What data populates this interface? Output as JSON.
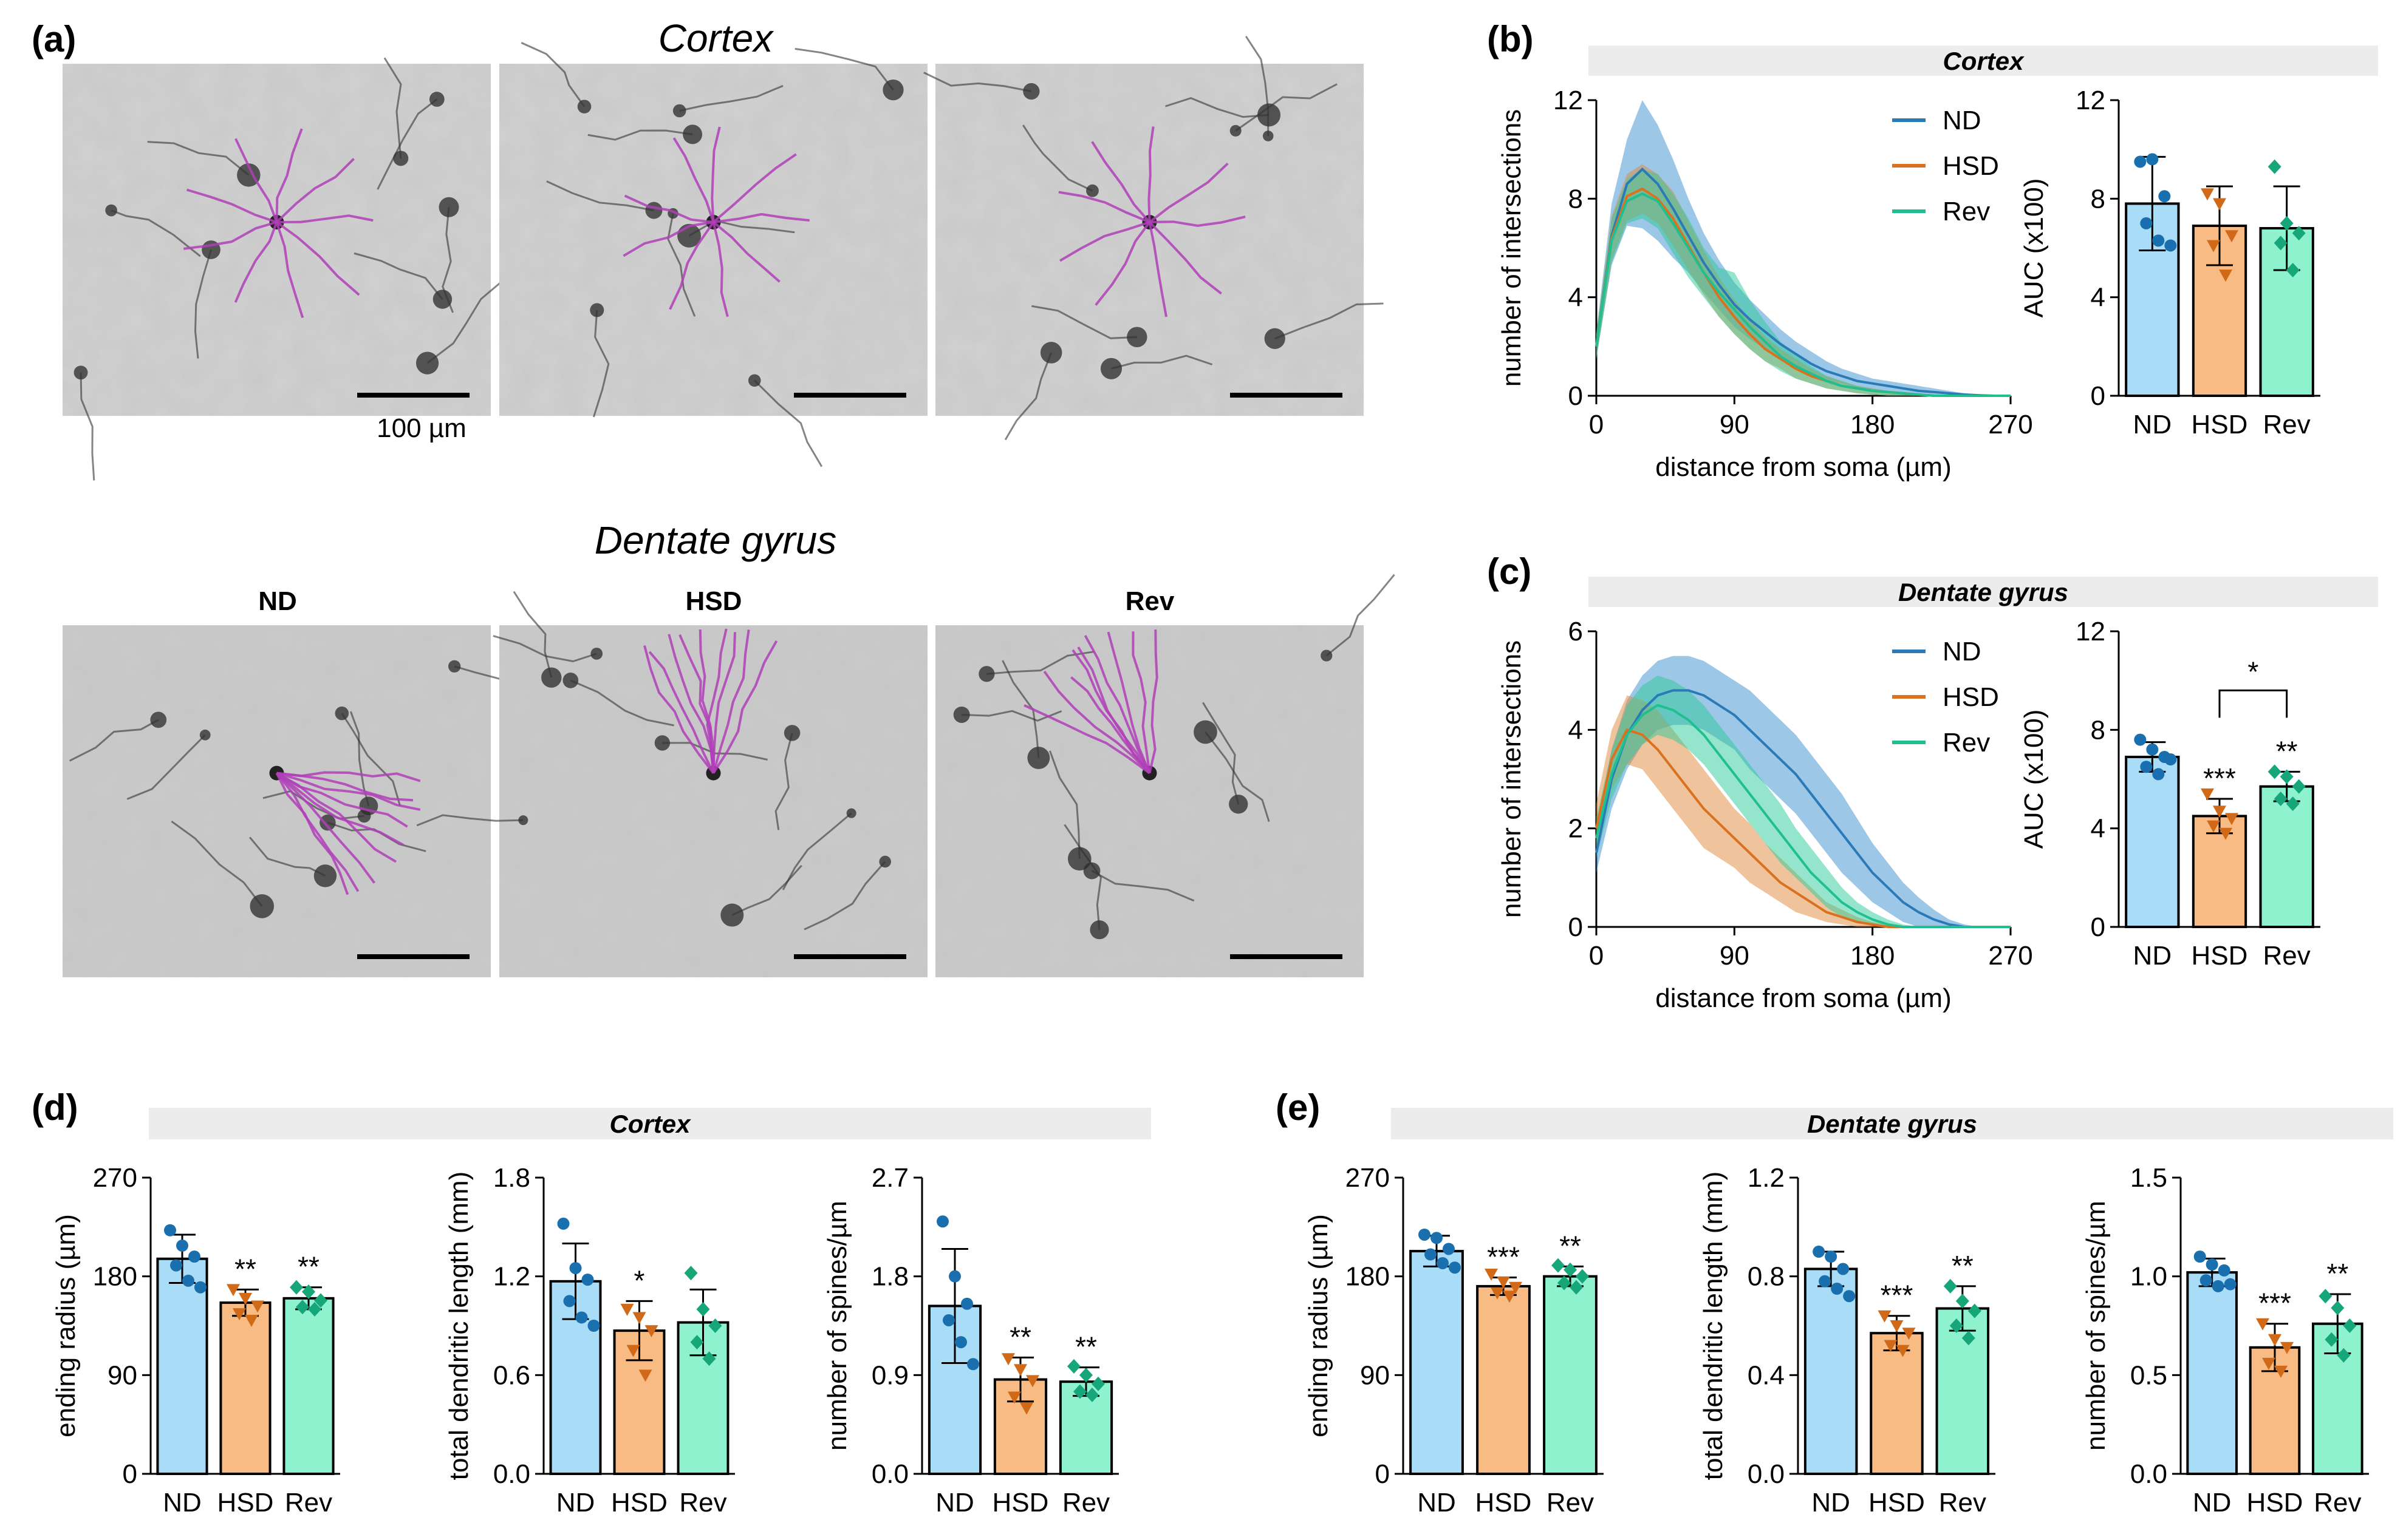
{
  "panels": {
    "a": {
      "letter": "(a)",
      "cortex_title": "Cortex",
      "dentate_title": "Dentate gyrus",
      "columns": [
        "ND",
        "HSD",
        "Rev"
      ],
      "scale_label": "100 µm"
    },
    "b": {
      "letter": "(b)",
      "header": "Cortex"
    },
    "c": {
      "letter": "(c)",
      "header": "Dentate gyrus"
    },
    "d": {
      "letter": "(d)",
      "header": "Cortex"
    },
    "e": {
      "letter": "(e)",
      "header": "Dentate gyrus"
    }
  },
  "groups": [
    "ND",
    "HSD",
    "Rev"
  ],
  "colors": {
    "ND_line": "#2a7ab8",
    "HSD_line": "#d9711f",
    "Rev_line": "#1fbf8f",
    "ND_fill": "#a8dcf7",
    "HSD_fill": "#f9bb84",
    "Rev_fill": "#8ef2cf",
    "ND_dot": "#1a6fae",
    "HSD_dot": "#d06a18",
    "Rev_dot": "#17a67a",
    "tracing": "#b040b8",
    "header_bg": "#ececec"
  },
  "chart_data": [
    {
      "id": "b-sholl",
      "type": "line",
      "title": "Cortex",
      "xlabel": "distance from soma (µm)",
      "ylabel": "number of intersections",
      "xlim": [
        0,
        270
      ],
      "ylim": [
        0,
        12
      ],
      "xticks": [
        0,
        90,
        180,
        270
      ],
      "yticks": [
        0,
        4,
        8,
        12
      ],
      "legend": [
        "ND",
        "HSD",
        "Rev"
      ],
      "x": [
        0,
        10,
        20,
        30,
        40,
        50,
        60,
        70,
        80,
        90,
        100,
        110,
        120,
        130,
        140,
        150,
        160,
        170,
        180,
        190,
        200,
        210,
        220,
        230,
        240,
        250,
        260,
        270
      ],
      "series": [
        {
          "name": "ND",
          "values": [
            2,
            6.5,
            8.6,
            9.2,
            8.6,
            7.6,
            6.5,
            5.4,
            4.5,
            3.7,
            3.1,
            2.6,
            2.1,
            1.7,
            1.3,
            1.0,
            0.8,
            0.6,
            0.5,
            0.4,
            0.3,
            0.2,
            0.15,
            0.1,
            0.05,
            0.02,
            0,
            0
          ],
          "upper": [
            2.6,
            7.8,
            10.4,
            12.0,
            11.0,
            9.6,
            8.0,
            6.6,
            5.5,
            4.6,
            3.9,
            3.3,
            2.7,
            2.2,
            1.8,
            1.4,
            1.1,
            0.9,
            0.7,
            0.6,
            0.5,
            0.4,
            0.3,
            0.2,
            0.1,
            0.05,
            0,
            0
          ],
          "lower": [
            1.5,
            5.3,
            6.9,
            6.8,
            6.3,
            5.6,
            5.0,
            4.2,
            3.5,
            2.8,
            2.3,
            1.9,
            1.5,
            1.2,
            0.9,
            0.6,
            0.5,
            0.3,
            0.25,
            0.2,
            0.1,
            0.05,
            0,
            0,
            0,
            0,
            0,
            0
          ]
        },
        {
          "name": "HSD",
          "values": [
            2,
            6.4,
            8.1,
            8.4,
            8.0,
            7.2,
            6.1,
            5.0,
            4.0,
            3.2,
            2.5,
            1.9,
            1.5,
            1.1,
            0.8,
            0.6,
            0.4,
            0.3,
            0.2,
            0.15,
            0.1,
            0.05,
            0,
            0,
            0,
            0,
            0,
            0
          ],
          "upper": [
            2.5,
            7.3,
            9.0,
            9.4,
            9.0,
            8.3,
            7.1,
            5.9,
            4.8,
            3.9,
            3.1,
            2.4,
            1.9,
            1.5,
            1.1,
            0.8,
            0.6,
            0.4,
            0.3,
            0.2,
            0.15,
            0.1,
            0.05,
            0,
            0,
            0,
            0,
            0
          ],
          "lower": [
            1.5,
            5.5,
            7.1,
            7.4,
            7.0,
            6.1,
            5.1,
            4.1,
            3.2,
            2.5,
            1.9,
            1.4,
            1.1,
            0.7,
            0.5,
            0.3,
            0.2,
            0.1,
            0.05,
            0,
            0,
            0,
            0,
            0,
            0,
            0,
            0,
            0
          ]
        },
        {
          "name": "Rev",
          "values": [
            2,
            6.3,
            7.9,
            8.2,
            7.9,
            7.0,
            6.0,
            5.0,
            4.2,
            3.5,
            2.8,
            2.2,
            1.6,
            1.2,
            0.9,
            0.6,
            0.4,
            0.3,
            0.2,
            0.15,
            0.1,
            0.05,
            0,
            0,
            0,
            0,
            0,
            0
          ],
          "upper": [
            2.5,
            7.2,
            8.8,
            9.2,
            9.0,
            8.2,
            7.2,
            6.0,
            5.2,
            5.0,
            3.9,
            3.0,
            2.2,
            1.7,
            1.2,
            0.8,
            0.6,
            0.4,
            0.3,
            0.2,
            0.15,
            0.1,
            0.05,
            0,
            0,
            0,
            0,
            0
          ],
          "lower": [
            1.5,
            5.4,
            7.0,
            7.2,
            6.8,
            5.8,
            4.8,
            4.0,
            3.2,
            2.5,
            1.9,
            1.4,
            1.0,
            0.7,
            0.5,
            0.3,
            0.2,
            0.1,
            0.05,
            0,
            0,
            0,
            0,
            0,
            0,
            0,
            0,
            0
          ]
        }
      ]
    },
    {
      "id": "b-auc",
      "type": "bar",
      "title": "Cortex",
      "xlabel": "",
      "ylabel": "AUC (x100)",
      "categories": [
        "ND",
        "HSD",
        "Rev"
      ],
      "ylim": [
        0,
        12
      ],
      "yticks": [
        0,
        4,
        8,
        12
      ],
      "values": [
        7.8,
        6.9,
        6.8
      ],
      "errors": [
        1.9,
        1.6,
        1.7
      ],
      "points": [
        [
          9.5,
          9.6,
          8.1,
          7.0,
          6.3,
          6.1
        ],
        [
          8.2,
          7.8,
          6.5,
          6.1,
          4.9
        ],
        [
          9.3,
          7.0,
          6.6,
          6.2,
          5.1
        ]
      ],
      "significance": [
        "",
        "",
        ""
      ]
    },
    {
      "id": "c-sholl",
      "type": "line",
      "title": "Dentate gyrus",
      "xlabel": "distance from soma (µm)",
      "ylabel": "number of intersections",
      "xlim": [
        0,
        270
      ],
      "ylim": [
        0,
        6
      ],
      "xticks": [
        0,
        90,
        180,
        270
      ],
      "yticks": [
        0,
        2,
        4,
        6
      ],
      "legend": [
        "ND",
        "HSD",
        "Rev"
      ],
      "x": [
        0,
        10,
        20,
        30,
        40,
        50,
        60,
        70,
        80,
        90,
        100,
        110,
        120,
        130,
        140,
        150,
        160,
        170,
        180,
        190,
        200,
        210,
        220,
        230,
        240,
        250,
        260,
        270
      ],
      "series": [
        {
          "name": "ND",
          "values": [
            1.5,
            3.0,
            3.9,
            4.4,
            4.7,
            4.8,
            4.8,
            4.7,
            4.5,
            4.3,
            4.0,
            3.7,
            3.4,
            3.1,
            2.7,
            2.3,
            1.9,
            1.5,
            1.1,
            0.8,
            0.5,
            0.3,
            0.15,
            0.05,
            0,
            0,
            0,
            0
          ],
          "upper": [
            1.9,
            3.6,
            4.6,
            5.1,
            5.4,
            5.5,
            5.5,
            5.4,
            5.2,
            5.0,
            4.8,
            4.5,
            4.2,
            3.9,
            3.5,
            3.1,
            2.7,
            2.2,
            1.7,
            1.3,
            0.9,
            0.6,
            0.35,
            0.15,
            0.05,
            0,
            0,
            0
          ],
          "lower": [
            1.1,
            2.4,
            3.2,
            3.7,
            4.0,
            4.1,
            4.1,
            4.0,
            3.8,
            3.6,
            3.2,
            2.9,
            2.6,
            2.3,
            1.9,
            1.5,
            1.1,
            0.8,
            0.5,
            0.3,
            0.1,
            0,
            0,
            0,
            0,
            0,
            0,
            0
          ]
        },
        {
          "name": "HSD",
          "values": [
            2.0,
            3.4,
            4.0,
            3.9,
            3.6,
            3.2,
            2.8,
            2.4,
            2.1,
            1.8,
            1.5,
            1.2,
            0.9,
            0.7,
            0.5,
            0.3,
            0.2,
            0.1,
            0.05,
            0,
            0,
            0,
            0,
            0,
            0,
            0,
            0,
            0
          ],
          "upper": [
            2.5,
            4.0,
            4.7,
            4.6,
            4.4,
            4.0,
            3.6,
            3.2,
            2.8,
            2.4,
            2.1,
            1.7,
            1.4,
            1.1,
            0.8,
            0.5,
            0.35,
            0.2,
            0.1,
            0.05,
            0,
            0,
            0,
            0,
            0,
            0,
            0,
            0
          ],
          "lower": [
            1.5,
            2.8,
            3.3,
            3.2,
            2.8,
            2.4,
            2.0,
            1.6,
            1.4,
            1.2,
            0.9,
            0.7,
            0.5,
            0.3,
            0.2,
            0.1,
            0.05,
            0,
            0,
            0,
            0,
            0,
            0,
            0,
            0,
            0,
            0,
            0
          ]
        },
        {
          "name": "Rev",
          "values": [
            1.8,
            3.1,
            3.9,
            4.3,
            4.5,
            4.4,
            4.2,
            3.9,
            3.5,
            3.1,
            2.7,
            2.3,
            1.9,
            1.5,
            1.1,
            0.8,
            0.5,
            0.3,
            0.15,
            0.05,
            0,
            0,
            0,
            0,
            0,
            0,
            0,
            0
          ],
          "upper": [
            2.2,
            3.6,
            4.5,
            4.9,
            5.1,
            5.0,
            4.8,
            4.5,
            4.1,
            3.7,
            3.3,
            2.9,
            2.5,
            2.0,
            1.6,
            1.2,
            0.8,
            0.5,
            0.3,
            0.15,
            0.05,
            0,
            0,
            0,
            0,
            0,
            0,
            0
          ],
          "lower": [
            1.4,
            2.6,
            3.3,
            3.7,
            3.9,
            3.8,
            3.6,
            3.3,
            2.9,
            2.5,
            2.1,
            1.7,
            1.3,
            1.0,
            0.7,
            0.4,
            0.2,
            0.1,
            0.05,
            0,
            0,
            0,
            0,
            0,
            0,
            0,
            0,
            0
          ]
        }
      ]
    },
    {
      "id": "c-auc",
      "type": "bar",
      "title": "Dentate gyrus",
      "xlabel": "",
      "ylabel": "AUC (x100)",
      "categories": [
        "ND",
        "HSD",
        "Rev"
      ],
      "ylim": [
        0,
        12
      ],
      "yticks": [
        0,
        4,
        8,
        12
      ],
      "values": [
        6.9,
        4.5,
        5.7
      ],
      "errors": [
        0.6,
        0.7,
        0.6
      ],
      "points": [
        [
          7.6,
          7.2,
          6.9,
          6.5,
          6.2,
          6.8
        ],
        [
          5.4,
          4.7,
          4.4,
          4.1,
          3.8
        ],
        [
          6.3,
          6.1,
          5.7,
          5.2,
          5.0
        ]
      ],
      "significance": [
        "",
        "***",
        "**"
      ],
      "bracket": {
        "from": "HSD",
        "to": "Rev",
        "label": "*"
      }
    },
    {
      "id": "d-radius",
      "type": "bar",
      "title": "Cortex",
      "ylabel": "ending radius (µm)",
      "categories": [
        "ND",
        "HSD",
        "Rev"
      ],
      "ylim": [
        0,
        270
      ],
      "yticks": [
        0,
        90,
        180,
        270
      ],
      "values": [
        196,
        156,
        160
      ],
      "errors": [
        22,
        12,
        10
      ],
      "points": [
        [
          222,
          208,
          198,
          190,
          176,
          170
        ],
        [
          168,
          160,
          153,
          146,
          140
        ],
        [
          170,
          166,
          158,
          152,
          150
        ]
      ],
      "significance": [
        "",
        "**",
        "**"
      ]
    },
    {
      "id": "d-length",
      "type": "bar",
      "title": "Cortex",
      "ylabel": "total dendritic length (mm)",
      "categories": [
        "ND",
        "HSD",
        "Rev"
      ],
      "ylim": [
        0,
        1.8
      ],
      "yticks": [
        0.0,
        0.6,
        1.2,
        1.8
      ],
      "values": [
        1.17,
        0.87,
        0.92
      ],
      "errors": [
        0.23,
        0.18,
        0.2
      ],
      "points": [
        [
          1.52,
          1.25,
          1.18,
          1.05,
          0.95,
          0.9
        ],
        [
          1.0,
          0.95,
          0.87,
          0.75,
          0.6
        ],
        [
          1.22,
          1.0,
          0.9,
          0.8,
          0.7
        ]
      ],
      "significance": [
        "",
        "*",
        ""
      ]
    },
    {
      "id": "d-spines",
      "type": "bar",
      "title": "Cortex",
      "ylabel": "number of spines/µm",
      "categories": [
        "ND",
        "HSD",
        "Rev"
      ],
      "ylim": [
        0,
        2.7
      ],
      "yticks": [
        0.0,
        0.9,
        1.8,
        2.7
      ],
      "values": [
        1.53,
        0.86,
        0.84
      ],
      "errors": [
        0.52,
        0.2,
        0.13
      ],
      "points": [
        [
          2.3,
          1.8,
          1.55,
          1.4,
          1.2,
          1.0
        ],
        [
          1.05,
          0.95,
          0.85,
          0.7,
          0.6
        ],
        [
          0.98,
          0.9,
          0.82,
          0.75,
          0.72
        ]
      ],
      "significance": [
        "",
        "**",
        "**"
      ]
    },
    {
      "id": "e-radius",
      "type": "bar",
      "title": "Dentate gyrus",
      "ylabel": "ending radius (µm)",
      "categories": [
        "ND",
        "HSD",
        "Rev"
      ],
      "ylim": [
        0,
        270
      ],
      "yticks": [
        0,
        90,
        180,
        270
      ],
      "values": [
        203,
        171,
        180
      ],
      "errors": [
        14,
        8,
        9
      ],
      "points": [
        [
          218,
          215,
          205,
          200,
          192,
          188
        ],
        [
          182,
          175,
          170,
          165,
          162
        ],
        [
          190,
          186,
          180,
          174,
          170
        ]
      ],
      "significance": [
        "",
        "***",
        "**"
      ]
    },
    {
      "id": "e-length",
      "type": "bar",
      "title": "Dentate gyrus",
      "ylabel": "total dendritic length (mm)",
      "categories": [
        "ND",
        "HSD",
        "Rev"
      ],
      "ylim": [
        0,
        1.2
      ],
      "yticks": [
        0.0,
        0.4,
        0.8,
        1.2
      ],
      "values": [
        0.83,
        0.57,
        0.67
      ],
      "errors": [
        0.07,
        0.07,
        0.09
      ],
      "points": [
        [
          0.9,
          0.88,
          0.83,
          0.78,
          0.75,
          0.72
        ],
        [
          0.64,
          0.6,
          0.57,
          0.52,
          0.5
        ],
        [
          0.76,
          0.7,
          0.66,
          0.6,
          0.55
        ]
      ],
      "significance": [
        "",
        "***",
        "**"
      ]
    },
    {
      "id": "e-spines",
      "type": "bar",
      "title": "Dentate gyrus",
      "ylabel": "number of spines/µm",
      "categories": [
        "ND",
        "HSD",
        "Rev"
      ],
      "ylim": [
        0,
        1.5
      ],
      "yticks": [
        0.0,
        0.5,
        1.0,
        1.5
      ],
      "values": [
        1.02,
        0.64,
        0.76
      ],
      "errors": [
        0.07,
        0.12,
        0.15
      ],
      "points": [
        [
          1.1,
          1.06,
          1.03,
          0.98,
          0.95,
          0.96
        ],
        [
          0.76,
          0.68,
          0.64,
          0.56,
          0.52
        ],
        [
          0.9,
          0.84,
          0.75,
          0.68,
          0.6
        ]
      ],
      "significance": [
        "",
        "***",
        "**"
      ]
    }
  ]
}
